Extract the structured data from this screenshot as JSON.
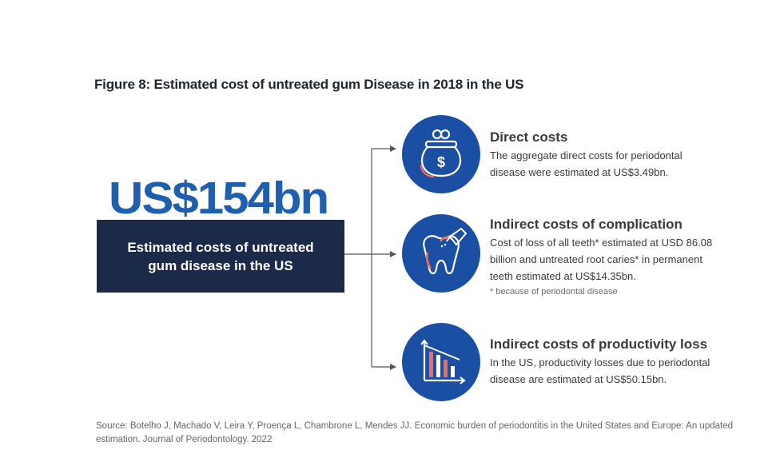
{
  "figure_title": "Figure 8: Estimated cost of untreated gum Disease in 2018 in the US",
  "total": {
    "amount": "US$154bn",
    "caption_line1": "Estimated costs of untreated",
    "caption_line2": "gum disease in the US"
  },
  "items": [
    {
      "icon": "coin-purse-dollar-icon",
      "title": "Direct costs",
      "desc_lines": [
        "The aggregate direct costs for periodontal",
        "disease were estimated at US$3.49bn."
      ]
    },
    {
      "icon": "tooth-drill-icon",
      "title": "Indirect costs of complication",
      "desc_lines": [
        "Cost of loss of all teeth* estimated at USD 86.08",
        "billion and untreated root caries* in permanent",
        "teeth estimated at US$14.35bn."
      ],
      "note": "* because of periodontal disease"
    },
    {
      "icon": "declining-bar-chart-icon",
      "title": "Indirect costs of productivity loss",
      "desc_lines": [
        "In the US, productivity losses due to periodontal",
        "disease are estimated at US$50.15bn."
      ]
    }
  ],
  "source_line1": "Source: Botelho J, Machado V, Leira Y, Proença L, Chambrone L, Mendes JJ. Economic burden of periodontitis in the United States and Europe: An updated",
  "source_line2": "estimation. Journal of Periodontology. 2022",
  "colors": {
    "accent_blue": "#1a4fa3",
    "amount_blue": "#1f5fb0",
    "navy": "#1c2a4a",
    "highlight_coral": "#ee6b5e"
  }
}
